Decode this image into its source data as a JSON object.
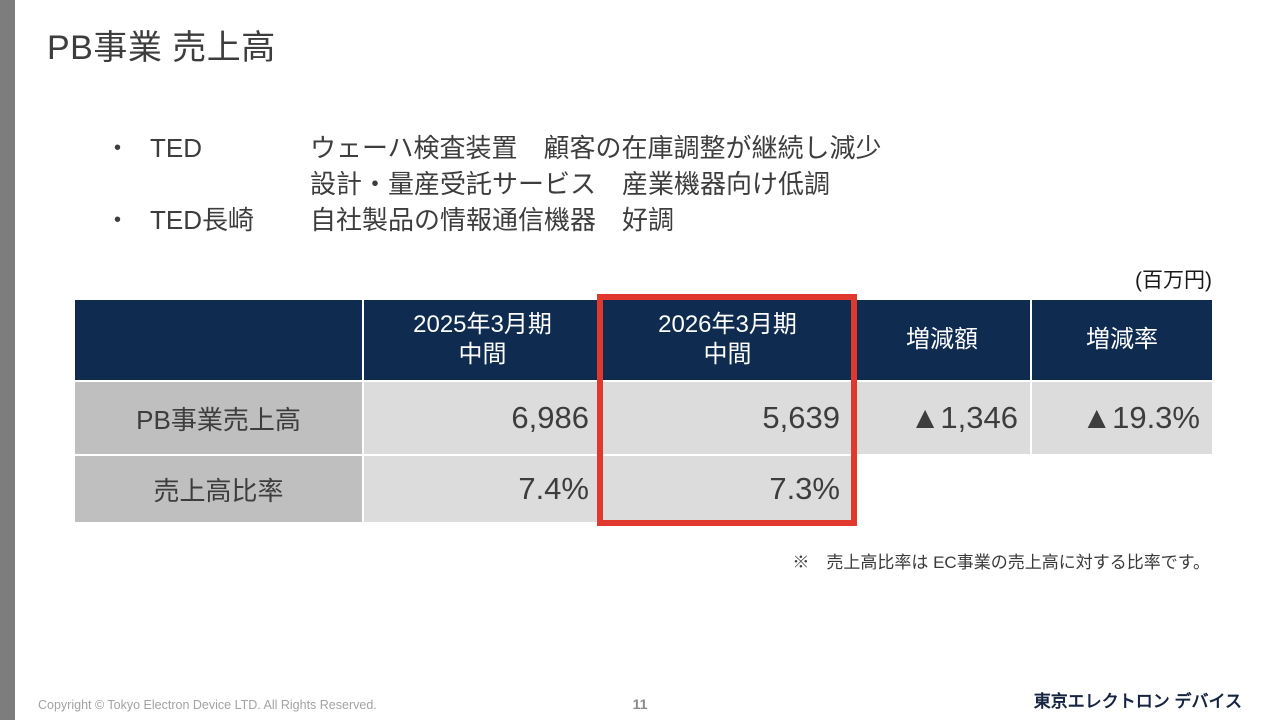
{
  "slide": {
    "title": "PB事業 売上高",
    "unit_label": "(百万円)",
    "note": "※　売上高比率は EC事業の売上高に対する比率です。"
  },
  "bullets": [
    {
      "marker": "•",
      "label": "TED",
      "lines": [
        "ウェーハ検査装置　顧客の在庫調整が継続し減少",
        "設計・量産受託サービス　産業機器向け低調"
      ]
    },
    {
      "marker": "•",
      "label": "TED長崎",
      "lines": [
        "自社製品の情報通信機器　好調"
      ]
    }
  ],
  "table": {
    "headers": [
      "",
      "2025年3月期\n中間",
      "2026年3月期\n中間",
      "増減額",
      "増減率"
    ],
    "rows": [
      {
        "label": "PB事業売上高",
        "values": [
          "6,986",
          "5,639",
          "▲1,346",
          "▲19.3%"
        ]
      },
      {
        "label": "売上高比率",
        "values": [
          "7.4%",
          "7.3%",
          "",
          ""
        ]
      }
    ],
    "highlighted_column": "2026年3月期 中間"
  },
  "footer": {
    "copyright": "Copyright © Tokyo Electron Device LTD. All Rights Reserved.",
    "page_number": "11",
    "logo_text": "東京エレクトロン デバイス"
  },
  "colors": {
    "header_navy": "#0f2c50",
    "highlight_red": "#e0382c",
    "row_label_gray": "#bfbfbf",
    "data_cell_gray": "#dcdcdc",
    "accent_bar_gray": "#7d7d7d"
  }
}
